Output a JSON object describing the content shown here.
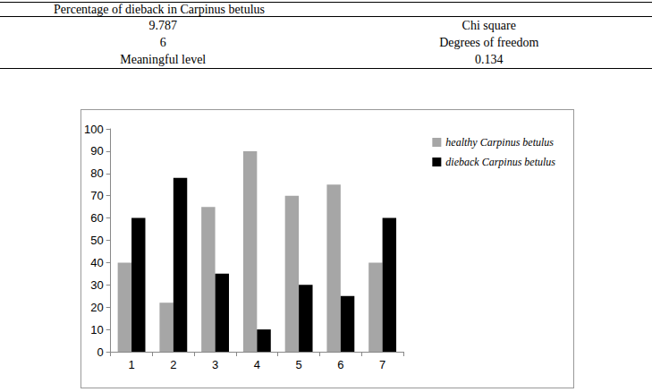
{
  "table": {
    "header": {
      "title": "Percentage of dieback in Carpinus betulus"
    },
    "rows": [
      [
        "9.787",
        "Chi square"
      ],
      [
        "6",
        "Degrees of freedom"
      ],
      [
        "Meaningful level",
        "0.134"
      ]
    ]
  },
  "chart_data": {
    "type": "bar",
    "categories": [
      "1",
      "2",
      "3",
      "4",
      "5",
      "6",
      "7"
    ],
    "series": [
      {
        "name": "healthy Carpinus betulus",
        "color": "#a6a6a6",
        "values": [
          40,
          22,
          65,
          90,
          70,
          75,
          40
        ]
      },
      {
        "name": "dieback Carpinus betulus",
        "color": "#000000",
        "values": [
          60,
          78,
          35,
          10,
          30,
          25,
          60
        ]
      }
    ],
    "ylim": [
      0,
      100
    ],
    "yticks": [
      0,
      10,
      20,
      30,
      40,
      50,
      60,
      70,
      80,
      90,
      100
    ],
    "grid": false,
    "legend": "upper right"
  }
}
